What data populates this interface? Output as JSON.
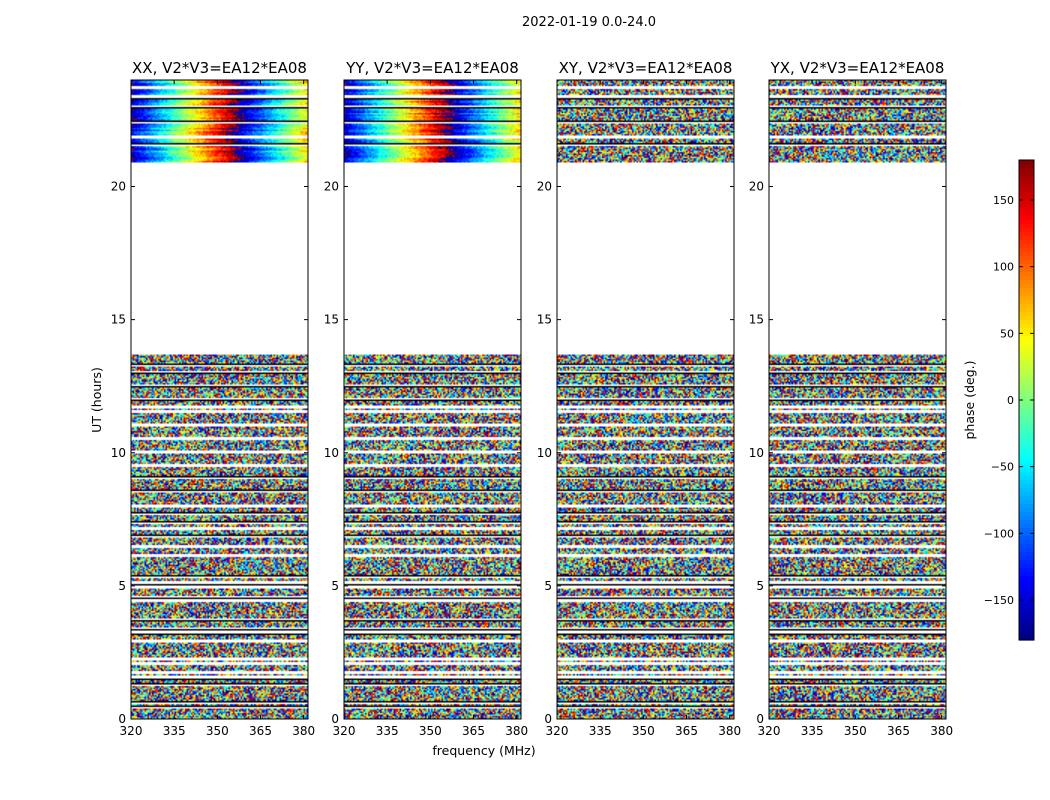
{
  "figure": {
    "title": "2022-01-19 0.0-24.0"
  },
  "chart_data": {
    "type": "heatmap",
    "subplots": [
      {
        "title": "XX, V2*V3=EA12*EA08",
        "polarization": "XX",
        "coherent_phase": true
      },
      {
        "title": "YY, V2*V3=EA12*EA08",
        "polarization": "YY",
        "coherent_phase": true
      },
      {
        "title": "XY, V2*V3=EA12*EA08",
        "polarization": "XY",
        "coherent_phase": false
      },
      {
        "title": "YX, V2*V3=EA12*EA08",
        "polarization": "YX",
        "coherent_phase": false
      }
    ],
    "xlabel": "frequency (MHz)",
    "ylabel": "UT (hours)",
    "xticks": [
      320,
      335,
      350,
      365,
      380
    ],
    "yticks": [
      0,
      5,
      10,
      15,
      20
    ],
    "xlim": [
      320,
      381.5
    ],
    "ylim": [
      0,
      24
    ],
    "data_time_ranges_hours": [
      [
        0,
        13.7
      ],
      [
        20.9,
        24
      ]
    ],
    "gap_rows_hours": [
      0.45,
      0.6,
      1.3,
      1.55,
      1.75,
      2.1,
      2.25,
      2.95,
      3.2,
      3.35,
      3.7,
      4.45,
      4.55,
      4.95,
      5.1,
      5.35,
      6.15,
      6.5,
      6.85,
      7.15,
      7.4,
      7.7,
      8.0,
      8.55,
      9.05,
      9.5,
      10.05,
      10.55,
      11.05,
      11.55,
      11.7,
      12.0,
      12.5,
      13.0,
      13.3,
      21.6,
      21.85,
      22.4,
      23.0,
      23.35,
      23.7
    ],
    "colorbar": {
      "label": "phase (deg.)",
      "min": -180,
      "max": 180,
      "ticks": [
        150,
        100,
        50,
        0,
        -50,
        -100,
        -150
      ],
      "tick_labels": [
        "150",
        "100",
        "50",
        "0",
        "−50",
        "−100",
        "−150"
      ],
      "colormap": "jet"
    }
  }
}
